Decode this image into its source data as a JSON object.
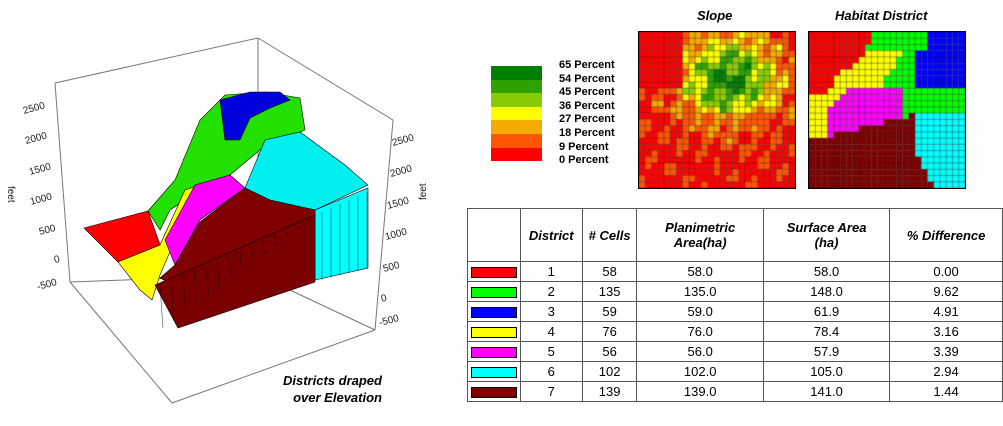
{
  "plot3d": {
    "caption_line1": "Districts draped",
    "caption_line2": "over Elevation",
    "left_axis_label": "feet",
    "right_axis_label": "feet",
    "left_ticks": [
      "2500",
      "2000",
      "1500",
      "1000",
      "500",
      "0",
      "-500"
    ],
    "right_ticks": [
      "2500",
      "2000",
      "1500",
      "1000",
      "500",
      "0",
      "-500"
    ]
  },
  "slope_map": {
    "title": "Slope",
    "legend": [
      {
        "label": "65 Percent",
        "color": "#008000"
      },
      {
        "label": "54 Percent",
        "color": "#2ea300"
      },
      {
        "label": "45 Percent",
        "color": "#88cc00"
      },
      {
        "label": "36 Percent",
        "color": "#ffff00"
      },
      {
        "label": "27 Percent",
        "color": "#f5aa00"
      },
      {
        "label": "18 Percent",
        "color": "#ff5500"
      },
      {
        "label": "9 Percent",
        "color": "#ff0000"
      },
      {
        "label": "0 Percent"
      }
    ]
  },
  "district_map": {
    "title": "Habitat District"
  },
  "chart_data": {
    "type": "table",
    "columns": [
      "",
      "District",
      "# Cells",
      "Planimetric Area(ha)",
      "Surface Area (ha)",
      "% Difference"
    ],
    "rows": [
      {
        "color": "#ff0000",
        "district": "1",
        "cells": "58",
        "planimetric": "58.0",
        "surface": "58.0",
        "diff": "0.00"
      },
      {
        "color": "#00ff00",
        "district": "2",
        "cells": "135",
        "planimetric": "135.0",
        "surface": "148.0",
        "diff": "9.62"
      },
      {
        "color": "#0000ff",
        "district": "3",
        "cells": "59",
        "planimetric": "59.0",
        "surface": "61.9",
        "diff": "4.91"
      },
      {
        "color": "#ffff00",
        "district": "4",
        "cells": "76",
        "planimetric": "76.0",
        "surface": "78.4",
        "diff": "3.16"
      },
      {
        "color": "#ff00ff",
        "district": "5",
        "cells": "56",
        "planimetric": "56.0",
        "surface": "57.9",
        "diff": "3.39"
      },
      {
        "color": "#00ffff",
        "district": "6",
        "cells": "102",
        "planimetric": "102.0",
        "surface": "105.0",
        "diff": "2.94"
      },
      {
        "color": "#800000",
        "district": "7",
        "cells": "139",
        "planimetric": "139.0",
        "surface": "141.0",
        "diff": "1.44"
      }
    ]
  }
}
